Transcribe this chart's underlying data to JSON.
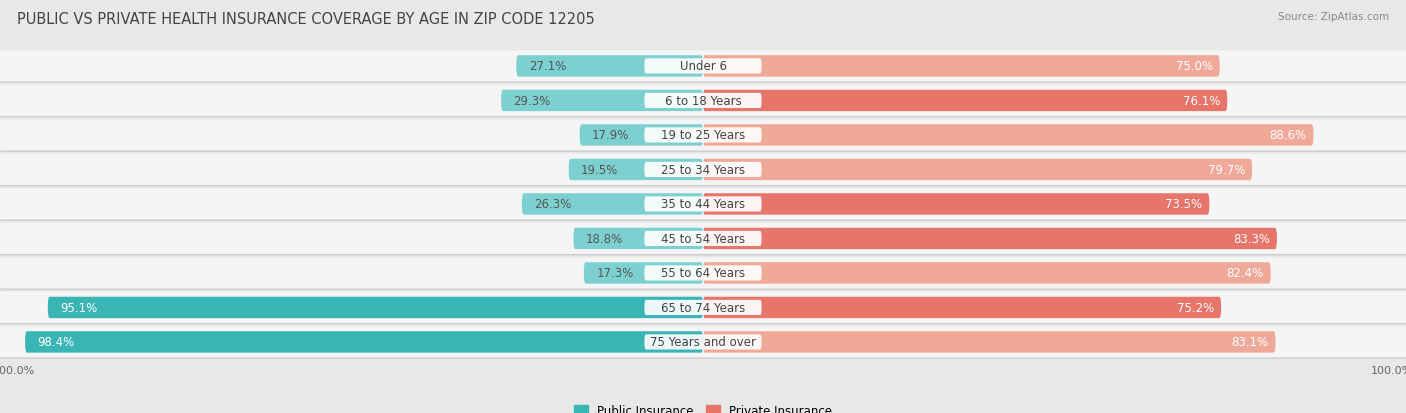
{
  "title": "PUBLIC VS PRIVATE HEALTH INSURANCE COVERAGE BY AGE IN ZIP CODE 12205",
  "source": "Source: ZipAtlas.com",
  "categories": [
    "Under 6",
    "6 to 18 Years",
    "19 to 25 Years",
    "25 to 34 Years",
    "35 to 44 Years",
    "45 to 54 Years",
    "55 to 64 Years",
    "65 to 74 Years",
    "75 Years and over"
  ],
  "public_values": [
    27.1,
    29.3,
    17.9,
    19.5,
    26.3,
    18.8,
    17.3,
    95.1,
    98.4
  ],
  "private_values": [
    75.0,
    76.1,
    88.6,
    79.7,
    73.5,
    83.3,
    82.4,
    75.2,
    83.1
  ],
  "public_color_dark": "#3ab5b5",
  "public_color_light": "#7dd0d0",
  "private_color_dark": "#e8756a",
  "private_color_light": "#f0a899",
  "bar_height": 0.62,
  "bg_color": "#e8e8e8",
  "row_bg": "#f5f5f5",
  "label_color_dark": "#555555",
  "label_color_white": "#ffffff",
  "axis_max": 100.0,
  "title_fontsize": 10.5,
  "label_fontsize": 8.5,
  "cat_fontsize": 8.5,
  "tick_fontsize": 8,
  "legend_fontsize": 8.5,
  "public_dark_threshold": 50,
  "private_dark_rows": [
    2,
    5,
    6,
    8
  ]
}
